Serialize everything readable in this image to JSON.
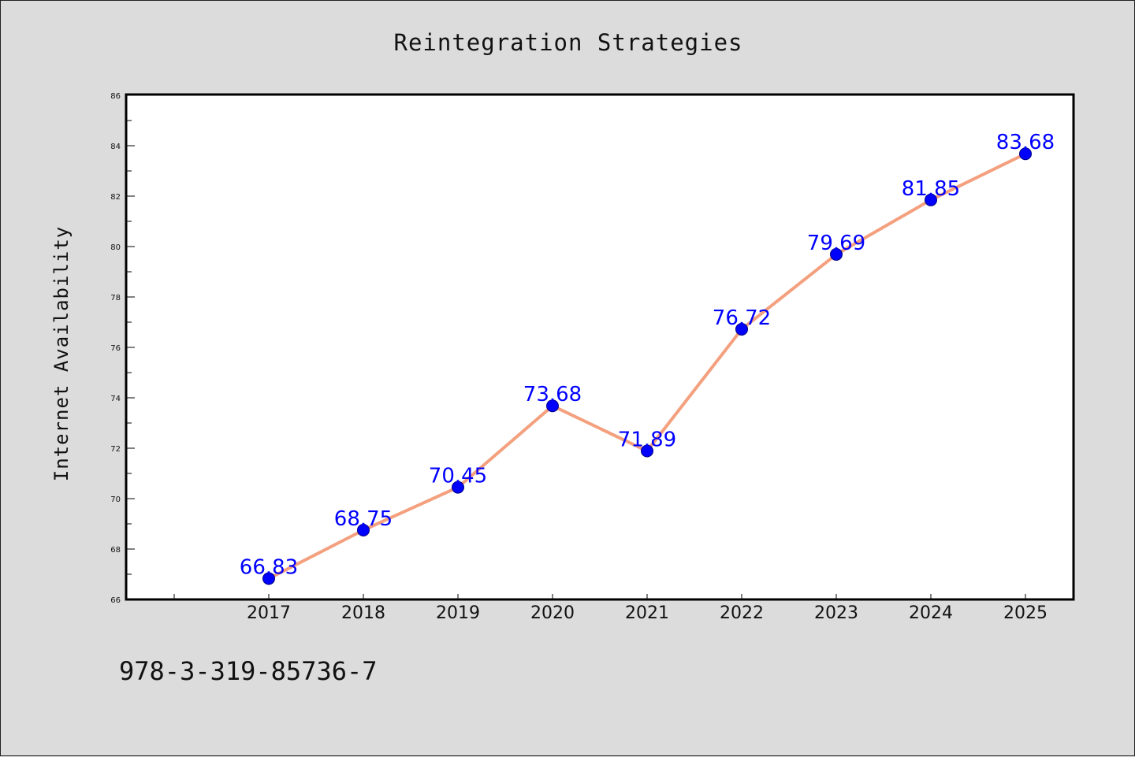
{
  "chart_data": {
    "type": "line",
    "title": "Reintegration Strategies",
    "xlabel": "",
    "ylabel": "Internet Availability",
    "categories": [
      "2017",
      "2018",
      "2019",
      "2020",
      "2021",
      "2022",
      "2023",
      "2024",
      "2025"
    ],
    "series": [
      {
        "values": [
          66.83,
          68.75,
          70.45,
          73.68,
          71.89,
          76.72,
          79.69,
          81.85,
          83.68
        ],
        "labels": [
          "66.83",
          "68.75",
          "70.45",
          "73.68",
          "71.89",
          "76.72",
          "79.69",
          "81.85",
          "83.68"
        ]
      }
    ],
    "ylim": [
      66,
      86
    ],
    "yticks": [
      "66",
      "68",
      "70",
      "72",
      "74",
      "76",
      "78",
      "80",
      "82",
      "84",
      "86"
    ],
    "grid": false,
    "legend": "none",
    "colors": {
      "line": "#f4a07f",
      "marker": "#0000ff",
      "marker_edge": "#000080",
      "label": "#0000ff"
    }
  },
  "footer": {
    "isbn": "978-3-319-85736-7"
  }
}
